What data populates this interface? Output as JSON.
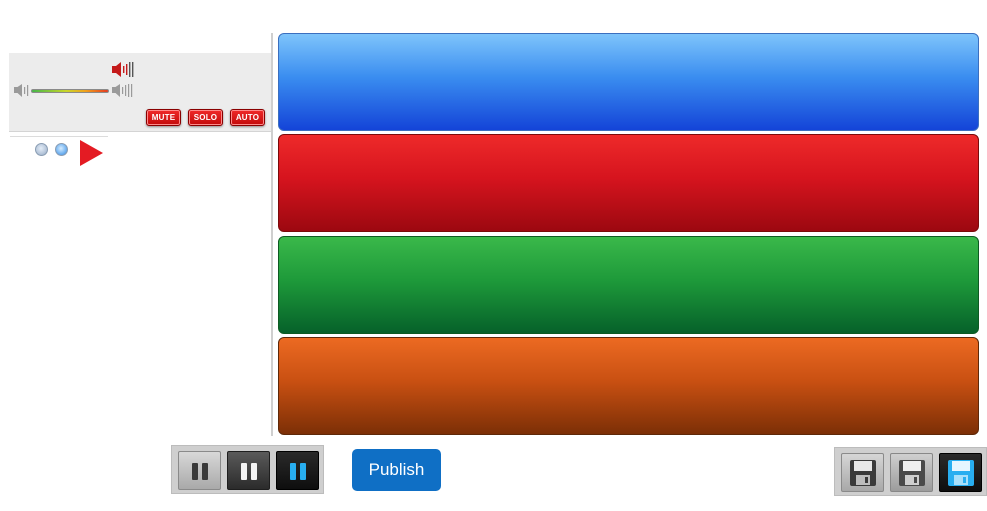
{
  "track_controls": {
    "mute_label": "MUTE",
    "solo_label": "SOLO",
    "auto_label": "AUTO",
    "volume_level": 1.0,
    "icons": [
      "speaker-loud-icon",
      "speaker-low-icon",
      "speaker-high-icon",
      "play-icon"
    ]
  },
  "lanes": [
    {
      "name": "blue",
      "color": "#1444d8"
    },
    {
      "name": "red",
      "color": "#c8101a"
    },
    {
      "name": "green",
      "color": "#0b7a30"
    },
    {
      "name": "orange",
      "color": "#b4480e"
    }
  ],
  "toolbar": {
    "publish_label": "Publish",
    "publish_color": "#0f6fc5",
    "mode_icons": [
      "pause-icon",
      "pause-icon",
      "pause-icon"
    ],
    "selected_mode": 3,
    "save_icons": [
      "floppy-disk-icon",
      "floppy-disk-icon",
      "floppy-disk-icon"
    ],
    "selected_save": 3,
    "accent_color": "#28aef0"
  }
}
